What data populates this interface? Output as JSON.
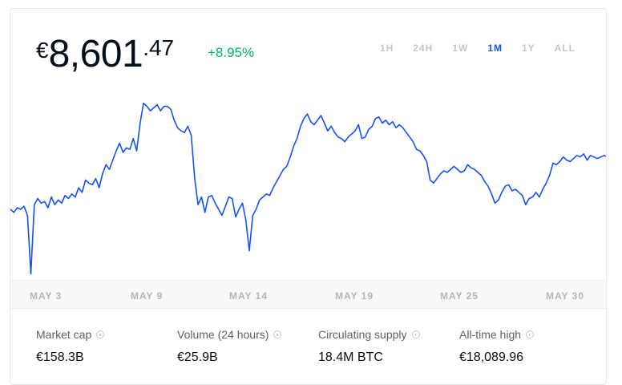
{
  "price": {
    "currency": "€",
    "whole": "8,601",
    "decimal": ".47"
  },
  "change": "+8.95%",
  "ranges": [
    {
      "label": "1H",
      "active": false
    },
    {
      "label": "24H",
      "active": false
    },
    {
      "label": "1W",
      "active": false
    },
    {
      "label": "1M",
      "active": true
    },
    {
      "label": "1Y",
      "active": false
    },
    {
      "label": "ALL",
      "active": false
    }
  ],
  "colors": {
    "line": "#1652f0",
    "positive": "#05b169",
    "active_range": "#1652f0"
  },
  "x_ticks": [
    "MAY 3",
    "MAY 9",
    "MAY 14",
    "MAY 19",
    "MAY 25",
    "MAY 30"
  ],
  "chart_data": {
    "type": "line",
    "y": [
      7920,
      7900,
      7930,
      7920,
      7940,
      7880,
      7500,
      7950,
      7990,
      7960,
      7970,
      7930,
      8000,
      7950,
      7980,
      7960,
      8010,
      7990,
      8020,
      8000,
      8060,
      8030,
      8110,
      8090,
      8080,
      8120,
      8060,
      8150,
      8210,
      8180,
      8240,
      8300,
      8350,
      8290,
      8320,
      8310,
      8380,
      8300,
      8480,
      8610,
      8590,
      8560,
      8580,
      8600,
      8560,
      8590,
      8590,
      8570,
      8500,
      8450,
      8430,
      8420,
      8460,
      8400,
      8120,
      7950,
      8000,
      7900,
      8000,
      8010,
      7960,
      7920,
      7880,
      7940,
      8000,
      7990,
      7870,
      7920,
      7960,
      7850,
      7650,
      7880,
      7920,
      7980,
      8000,
      8020,
      8010,
      8060,
      8100,
      8140,
      8180,
      8200,
      8260,
      8330,
      8380,
      8460,
      8510,
      8540,
      8490,
      8470,
      8500,
      8530,
      8480,
      8430,
      8460,
      8420,
      8390,
      8380,
      8360,
      8390,
      8410,
      8430,
      8470,
      8380,
      8390,
      8440,
      8460,
      8510,
      8520,
      8480,
      8500,
      8470,
      8490,
      8450,
      8470,
      8450,
      8420,
      8390,
      8360,
      8310,
      8300,
      8270,
      8230,
      8110,
      8090,
      8120,
      8150,
      8170,
      8160,
      8180,
      8200,
      8180,
      8160,
      8170,
      8210,
      8190,
      8180,
      8160,
      8140,
      8100,
      8070,
      8020,
      7960,
      7980,
      8030,
      8070,
      8080,
      8040,
      8050,
      8030,
      8010,
      7950,
      7990,
      8000,
      8030,
      8000,
      8050,
      8090,
      8140,
      8220,
      8210,
      8230,
      8260,
      8240,
      8230,
      8250,
      8270,
      8260,
      8280,
      8240,
      8270,
      8260,
      8250,
      8260,
      8270,
      8260
    ],
    "ylim": [
      7450,
      8650
    ],
    "title": "",
    "xlabel": "",
    "ylabel": ""
  },
  "stats": [
    {
      "label": "Market cap",
      "value": "€158.3B"
    },
    {
      "label": "Volume (24 hours)",
      "value": "€25.9B"
    },
    {
      "label": "Circulating supply",
      "value": "18.4M BTC"
    },
    {
      "label": "All-time high",
      "value": "€18,089.96"
    }
  ]
}
